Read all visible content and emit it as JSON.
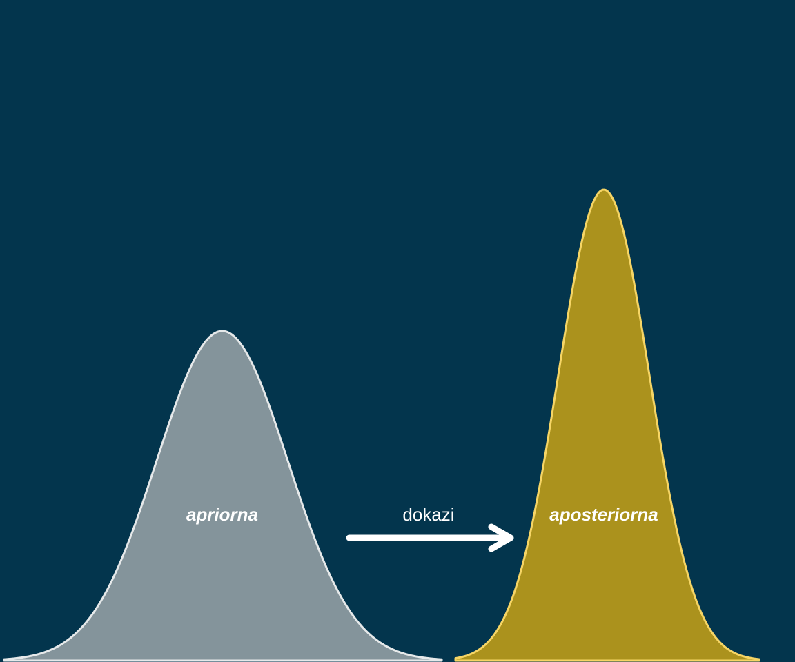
{
  "colors": {
    "background": "#03354d",
    "prior_fill": "#84949b",
    "prior_stroke": "#e6e9ea",
    "posterior_fill": "#ab921d",
    "posterior_stroke": "#f6d565",
    "arrow": "#ffffff"
  },
  "distributions": {
    "prior": {
      "label": "apriorna"
    },
    "posterior": {
      "label": "aposteriorna"
    }
  },
  "arrow": {
    "label": "dokazi",
    "icon": "right-arrow-icon"
  }
}
